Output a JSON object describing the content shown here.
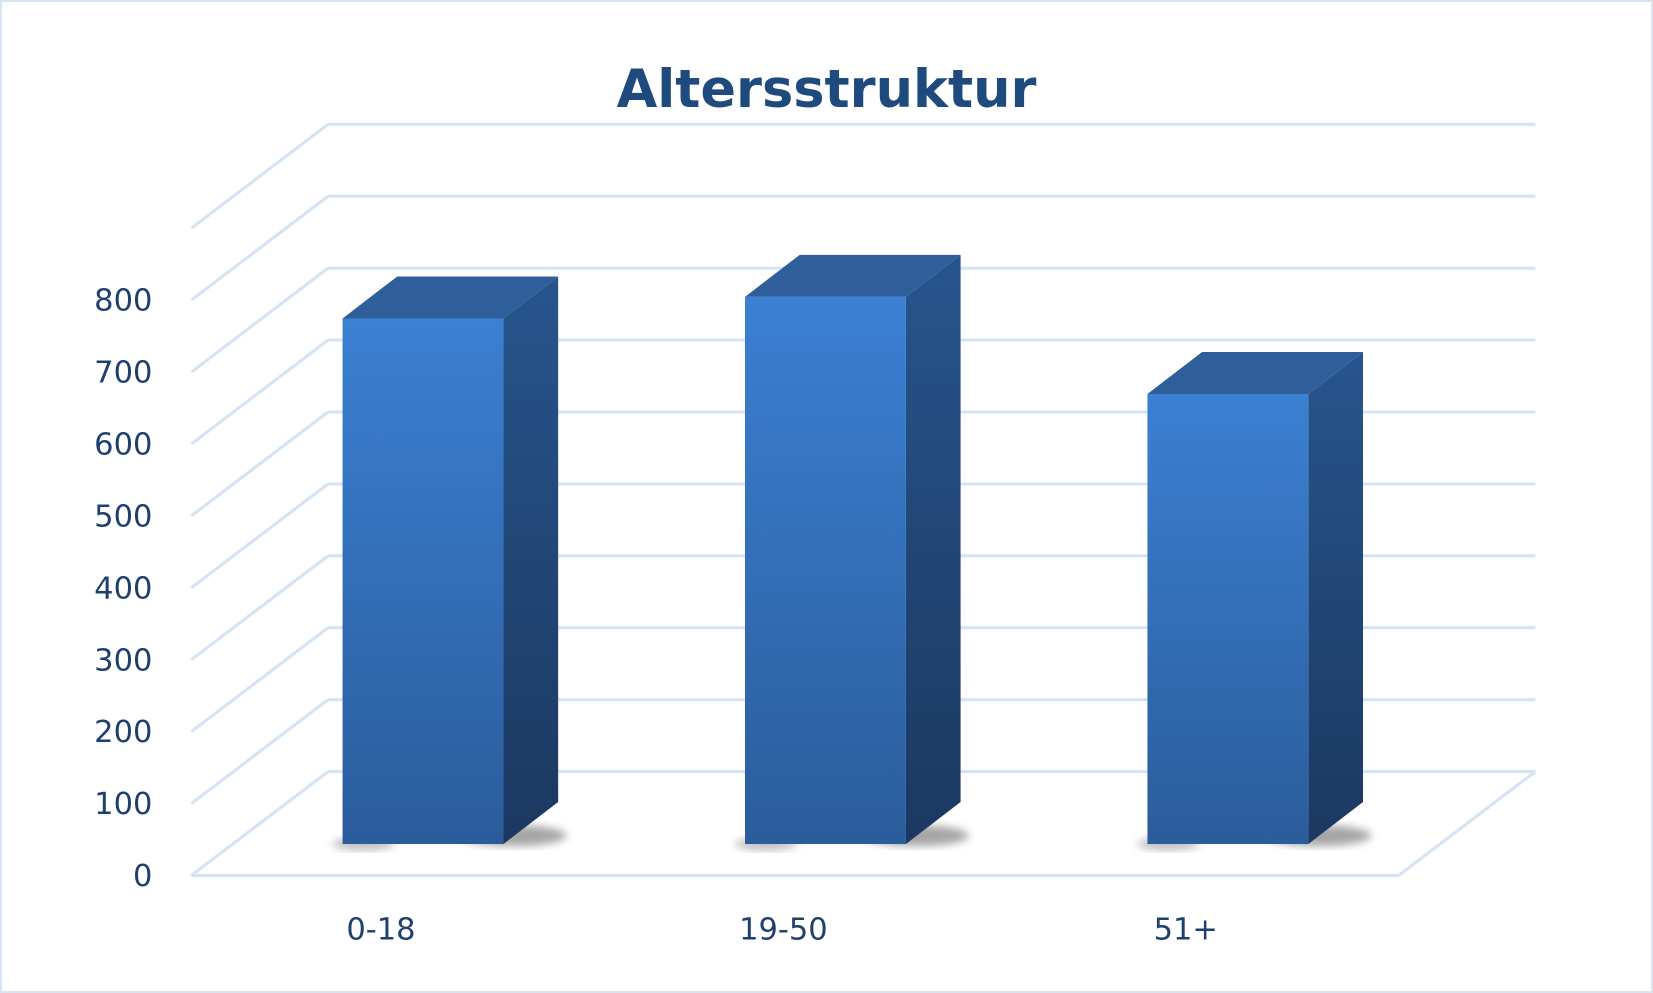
{
  "chart_data": {
    "type": "bar",
    "style": "3d-column",
    "title": "Altersstruktur",
    "xlabel": "",
    "ylabel": "",
    "categories": [
      "0-18",
      "19-50",
      "51+"
    ],
    "values": [
      760,
      790,
      655
    ],
    "ylim": [
      0,
      900
    ],
    "yticks": [
      "0",
      "100",
      "200",
      "300",
      "400",
      "500",
      "600",
      "700",
      "800"
    ],
    "grid": true,
    "legend": "none",
    "colors": {
      "bar_front": "#3a7fd0",
      "bar_side": "#234c80",
      "bar_top": "#2e5f9b",
      "grid": "#d6e3f3",
      "text": "#1f3f6e",
      "title": "#1f4a7e"
    }
  }
}
